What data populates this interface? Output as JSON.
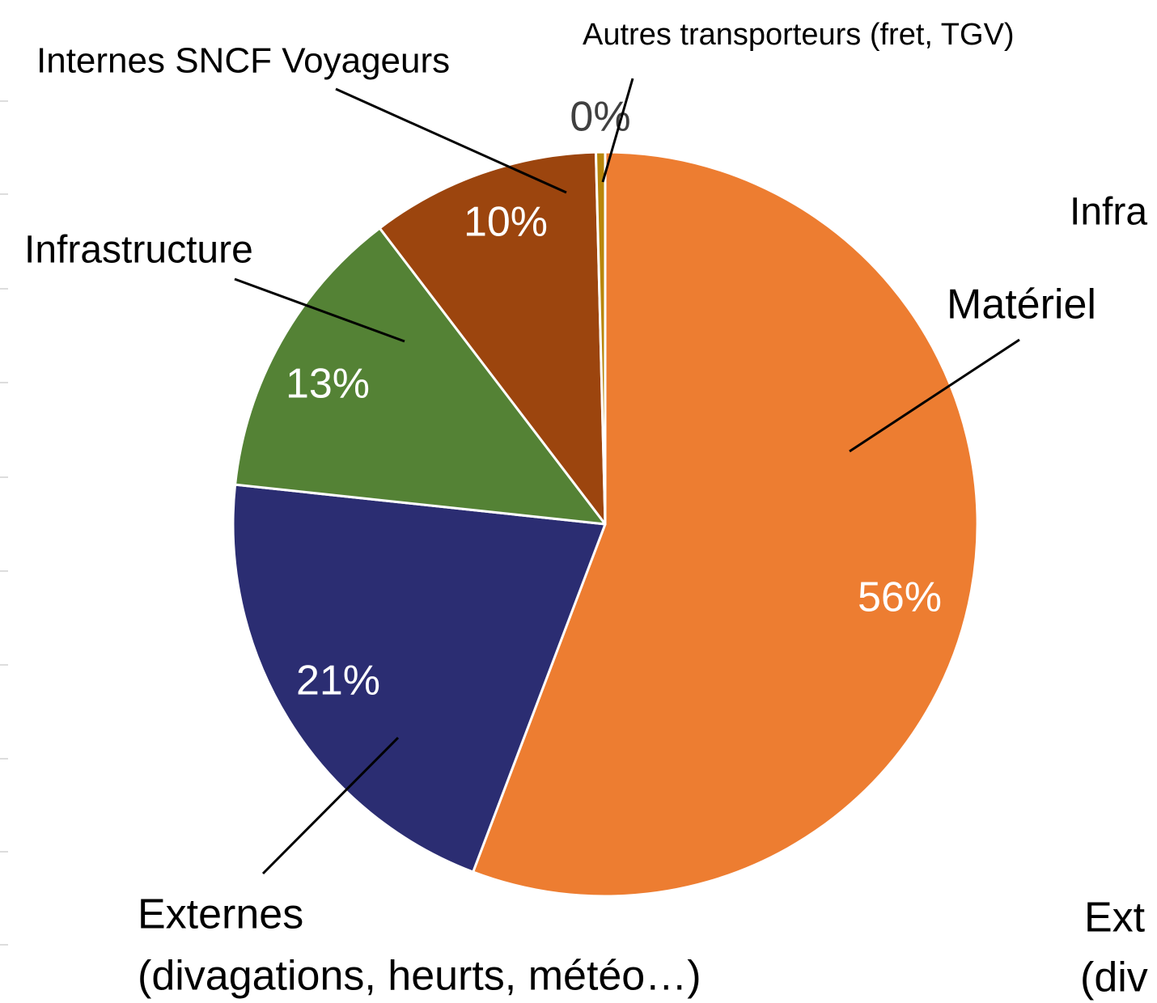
{
  "chart_data": {
    "type": "pie",
    "categories": [
      "Matériel",
      [
        "Externes",
        "(divagations, heurts, météo…)"
      ],
      "Infrastructure",
      "Internes SNCF Voyageurs",
      "Autres transporteurs (fret, TGV)"
    ],
    "values": [
      56,
      21,
      13,
      10,
      0.4
    ],
    "value_labels": [
      "56%",
      "21%",
      "13%",
      "10%",
      "0%"
    ],
    "colors": [
      "#ED7D31",
      "#2B2D72",
      "#548235",
      "#9C450E",
      "#B8860B"
    ],
    "cropped_labels": [
      "Infra",
      "Ext",
      "(div"
    ]
  }
}
